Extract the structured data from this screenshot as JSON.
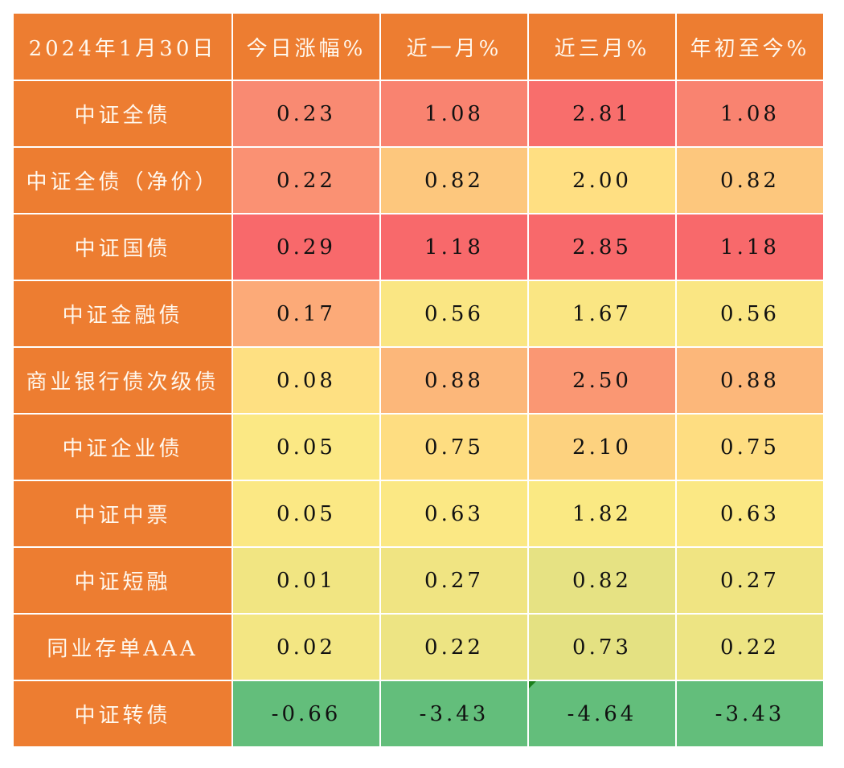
{
  "header": {
    "date": "2024年1月30日",
    "columns": [
      "今日涨幅%",
      "近一月%",
      "近三月%",
      "年初至今%"
    ]
  },
  "colors": {
    "header_bg": "#ed7d31",
    "header_text": "#fff8ee",
    "red_high": "#f8696b",
    "yellow_mid": "#ffeb84",
    "green_low": "#63be7b"
  },
  "rows": [
    {
      "name": "中证全债",
      "values": [
        "0.23",
        "1.08",
        "2.81",
        "1.08"
      ],
      "bg": [
        "#f98a72",
        "#f98370",
        "#f86e6c",
        "#f98370"
      ]
    },
    {
      "name": "中证全债（净价）",
      "values": [
        "0.22",
        "0.82",
        "2.00",
        "0.82"
      ],
      "bg": [
        "#fa9173",
        "#fdc77d",
        "#ffdf82",
        "#fdc77d"
      ]
    },
    {
      "name": "中证国债",
      "values": [
        "0.29",
        "1.18",
        "2.85",
        "1.18"
      ],
      "bg": [
        "#f8696b",
        "#f8696b",
        "#f8696b",
        "#f8696b"
      ]
    },
    {
      "name": "中证金融债",
      "values": [
        "0.17",
        "0.56",
        "1.67",
        "0.56"
      ],
      "bg": [
        "#fcaa78",
        "#fae683",
        "#fae683",
        "#fae683"
      ]
    },
    {
      "name": "商业银行债次级债",
      "values": [
        "0.08",
        "0.88",
        "2.50",
        "0.88"
      ],
      "bg": [
        "#fee082",
        "#fcb77a",
        "#fa9773",
        "#fcb77a"
      ]
    },
    {
      "name": "中证企业债",
      "values": [
        "0.05",
        "0.75",
        "2.10",
        "0.75"
      ],
      "bg": [
        "#fbe884",
        "#fedd81",
        "#fdd27f",
        "#fedd81"
      ]
    },
    {
      "name": "中证中票",
      "values": [
        "0.05",
        "0.63",
        "1.82",
        "0.63"
      ],
      "bg": [
        "#fbe884",
        "#fbe884",
        "#fae983",
        "#fbe884"
      ]
    },
    {
      "name": "中证短融",
      "values": [
        "0.01",
        "0.27",
        "0.82",
        "0.27"
      ],
      "bg": [
        "#f1e582",
        "#f0e482",
        "#e6e283",
        "#f0e482"
      ]
    },
    {
      "name": "同业存单AAA",
      "values": [
        "0.02",
        "0.22",
        "0.73",
        "0.22"
      ],
      "bg": [
        "#f3e683",
        "#ede483",
        "#e4e182",
        "#ede483"
      ]
    },
    {
      "name": "中证转债",
      "values": [
        "-0.66",
        "-3.43",
        "-4.64",
        "-3.43"
      ],
      "bg": [
        "#63be7b",
        "#63be7b",
        "#63be7b",
        "#63be7b"
      ]
    }
  ]
}
